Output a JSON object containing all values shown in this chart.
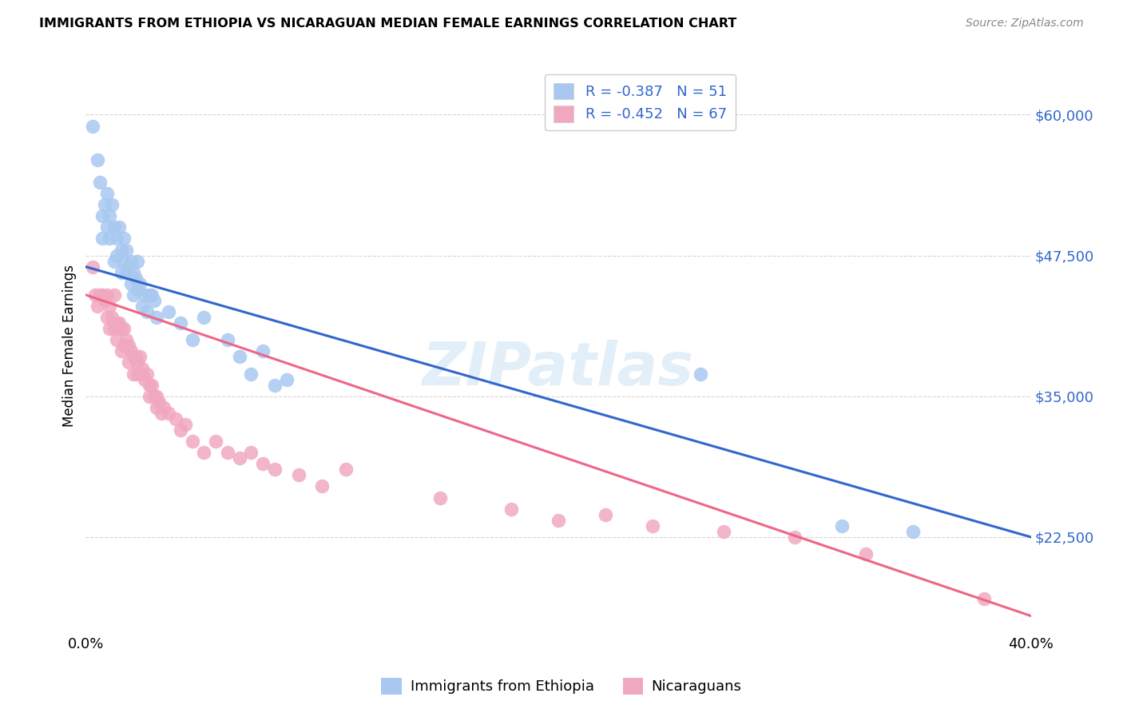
{
  "title": "IMMIGRANTS FROM ETHIOPIA VS NICARAGUAN MEDIAN FEMALE EARNINGS CORRELATION CHART",
  "source": "Source: ZipAtlas.com",
  "ylabel": "Median Female Earnings",
  "y_ticks": [
    22500,
    35000,
    47500,
    60000
  ],
  "y_tick_labels": [
    "$22,500",
    "$35,000",
    "$47,500",
    "$60,000"
  ],
  "x_range": [
    0.0,
    0.4
  ],
  "y_range": [
    14000,
    65000
  ],
  "legend1_label": "R = -0.387   N = 51",
  "legend2_label": "R = -0.452   N = 67",
  "legend_xlabel": "Immigrants from Ethiopia",
  "legend_xlabel2": "Nicaraguans",
  "blue_color": "#a8c8f0",
  "pink_color": "#f0a8c0",
  "blue_line_color": "#3366cc",
  "pink_line_color": "#ee6688",
  "text_color": "#3366cc",
  "watermark_text": "ZIPatlas",
  "blue_scatter_x": [
    0.003,
    0.005,
    0.006,
    0.007,
    0.007,
    0.008,
    0.009,
    0.009,
    0.01,
    0.01,
    0.011,
    0.012,
    0.012,
    0.013,
    0.013,
    0.014,
    0.015,
    0.015,
    0.016,
    0.016,
    0.017,
    0.017,
    0.018,
    0.019,
    0.019,
    0.02,
    0.02,
    0.021,
    0.022,
    0.022,
    0.023,
    0.024,
    0.025,
    0.026,
    0.027,
    0.028,
    0.029,
    0.03,
    0.035,
    0.04,
    0.045,
    0.05,
    0.06,
    0.065,
    0.07,
    0.075,
    0.08,
    0.085,
    0.26,
    0.32,
    0.35
  ],
  "blue_scatter_y": [
    59000,
    56000,
    54000,
    51000,
    49000,
    52000,
    50000,
    53000,
    51000,
    49000,
    52000,
    50000,
    47000,
    49000,
    47500,
    50000,
    48000,
    46000,
    49000,
    47000,
    46000,
    48000,
    46500,
    47000,
    45000,
    46000,
    44000,
    45500,
    44500,
    47000,
    45000,
    43000,
    44000,
    42500,
    44000,
    44000,
    43500,
    42000,
    42500,
    41500,
    40000,
    42000,
    40000,
    38500,
    37000,
    39000,
    36000,
    36500,
    37000,
    23500,
    23000
  ],
  "pink_scatter_x": [
    0.003,
    0.004,
    0.005,
    0.006,
    0.007,
    0.008,
    0.009,
    0.009,
    0.01,
    0.01,
    0.011,
    0.012,
    0.012,
    0.013,
    0.013,
    0.014,
    0.015,
    0.015,
    0.016,
    0.016,
    0.017,
    0.018,
    0.018,
    0.019,
    0.02,
    0.02,
    0.021,
    0.022,
    0.022,
    0.023,
    0.024,
    0.024,
    0.025,
    0.026,
    0.027,
    0.027,
    0.028,
    0.029,
    0.03,
    0.03,
    0.031,
    0.032,
    0.033,
    0.035,
    0.038,
    0.04,
    0.042,
    0.045,
    0.05,
    0.055,
    0.06,
    0.065,
    0.07,
    0.075,
    0.08,
    0.09,
    0.1,
    0.11,
    0.15,
    0.18,
    0.2,
    0.22,
    0.24,
    0.27,
    0.3,
    0.33,
    0.38
  ],
  "pink_scatter_y": [
    46500,
    44000,
    43000,
    44000,
    44000,
    43500,
    42000,
    44000,
    43000,
    41000,
    42000,
    41000,
    44000,
    41500,
    40000,
    41500,
    41000,
    39000,
    41000,
    39500,
    40000,
    39500,
    38000,
    39000,
    38500,
    37000,
    38500,
    38000,
    37000,
    38500,
    37000,
    37500,
    36500,
    37000,
    36000,
    35000,
    36000,
    35000,
    35000,
    34000,
    34500,
    33500,
    34000,
    33500,
    33000,
    32000,
    32500,
    31000,
    30000,
    31000,
    30000,
    29500,
    30000,
    29000,
    28500,
    28000,
    27000,
    28500,
    26000,
    25000,
    24000,
    24500,
    23500,
    23000,
    22500,
    21000,
    17000
  ],
  "blue_line_x": [
    0.0,
    0.4
  ],
  "blue_line_y": [
    46500,
    22500
  ],
  "pink_line_x": [
    0.0,
    0.4
  ],
  "pink_line_y": [
    44000,
    15500
  ]
}
